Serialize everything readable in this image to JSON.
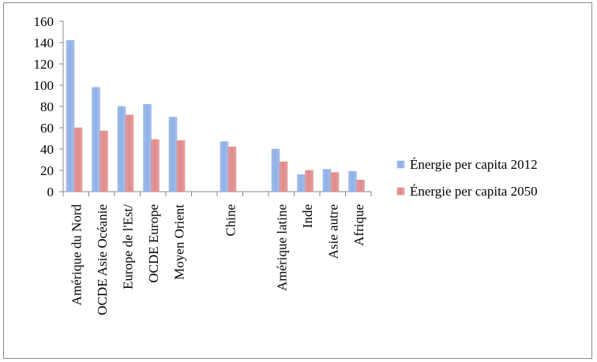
{
  "chart_data": {
    "type": "bar",
    "categories": [
      "Amérique du Nord",
      "OCDE Asie Océanie",
      "Europe de l'Est/",
      "OCDE Europe",
      "Moyen Orient",
      "",
      "Chine",
      "",
      "Amérique latine",
      "Inde",
      "Asie autre",
      "Afrique"
    ],
    "series": [
      {
        "name": "Énergie per capita 2012",
        "values": [
          142,
          98,
          80,
          82,
          70,
          null,
          47,
          null,
          40,
          16,
          21,
          19
        ],
        "color": "#8fb0e8"
      },
      {
        "name": "Énergie per capita 2050",
        "values": [
          60,
          57,
          72,
          49,
          48,
          null,
          42,
          null,
          28,
          20,
          18,
          11
        ],
        "color": "#e08a8a"
      }
    ],
    "ylim": [
      0,
      160
    ],
    "yticks": [
      0,
      20,
      40,
      60,
      80,
      100,
      120,
      140,
      160
    ],
    "grid": false,
    "legend": "right"
  }
}
